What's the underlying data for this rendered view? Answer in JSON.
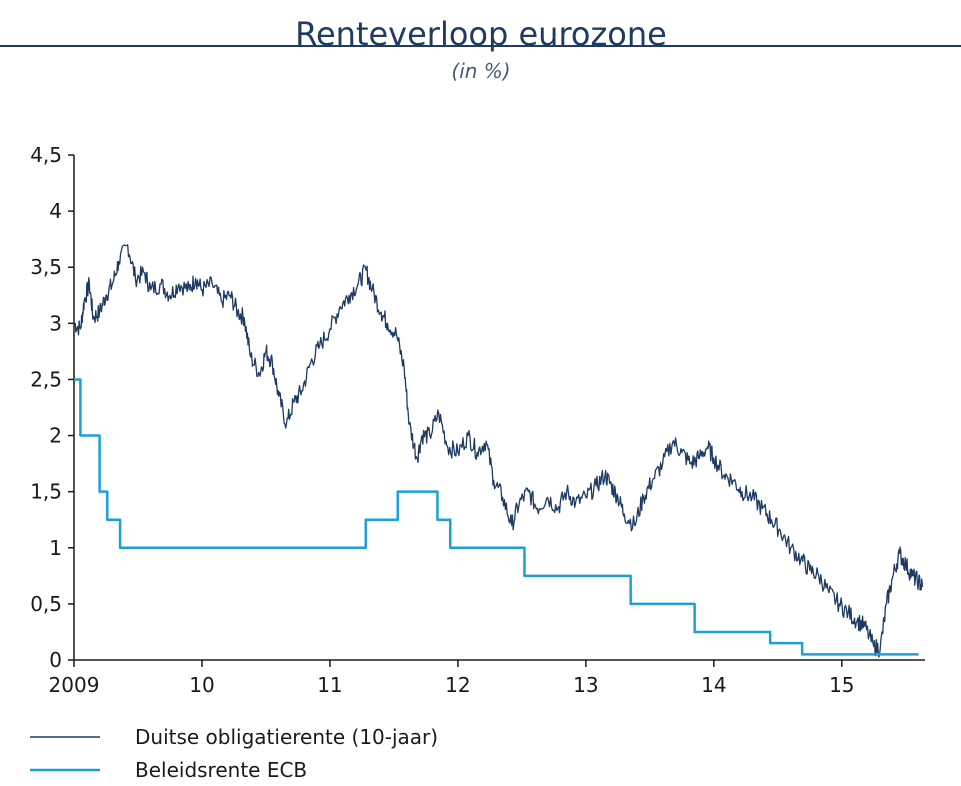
{
  "chart_data": {
    "type": "line",
    "title": "Renteverloop eurozone",
    "subtitle": "(in %)",
    "xlabel": "",
    "ylabel": "",
    "xlim": [
      2009.0,
      2015.65
    ],
    "ylim": [
      0,
      4.5
    ],
    "x_ticks": [
      {
        "value": 2009,
        "label": "2009"
      },
      {
        "value": 2010,
        "label": "10"
      },
      {
        "value": 2011,
        "label": "11"
      },
      {
        "value": 2012,
        "label": "12"
      },
      {
        "value": 2013,
        "label": "13"
      },
      {
        "value": 2014,
        "label": "14"
      },
      {
        "value": 2015,
        "label": "15"
      }
    ],
    "y_ticks": [
      {
        "value": 0,
        "label": "0"
      },
      {
        "value": 0.5,
        "label": "0,5"
      },
      {
        "value": 1,
        "label": "1"
      },
      {
        "value": 1.5,
        "label": "1,5"
      },
      {
        "value": 2,
        "label": "2"
      },
      {
        "value": 2.5,
        "label": "2,5"
      },
      {
        "value": 3,
        "label": "3"
      },
      {
        "value": 3.5,
        "label": "3,5"
      },
      {
        "value": 4,
        "label": "4"
      },
      {
        "value": 4.5,
        "label": "4,5"
      }
    ],
    "grid": false,
    "legend_position": "bottom-left",
    "series": [
      {
        "name": "Duitse obligatierente (10-jaar)",
        "color": "#1f3a63",
        "step": false,
        "points": [
          [
            2009.0,
            3.0
          ],
          [
            2009.05,
            2.95
          ],
          [
            2009.08,
            3.2
          ],
          [
            2009.12,
            3.35
          ],
          [
            2009.15,
            3.05
          ],
          [
            2009.2,
            3.1
          ],
          [
            2009.25,
            3.25
          ],
          [
            2009.3,
            3.35
          ],
          [
            2009.35,
            3.55
          ],
          [
            2009.42,
            3.7
          ],
          [
            2009.48,
            3.4
          ],
          [
            2009.55,
            3.45
          ],
          [
            2009.6,
            3.3
          ],
          [
            2009.68,
            3.35
          ],
          [
            2009.75,
            3.25
          ],
          [
            2009.82,
            3.35
          ],
          [
            2009.9,
            3.3
          ],
          [
            2009.95,
            3.4
          ],
          [
            2010.0,
            3.3
          ],
          [
            2010.08,
            3.35
          ],
          [
            2010.15,
            3.2
          ],
          [
            2010.22,
            3.25
          ],
          [
            2010.28,
            3.1
          ],
          [
            2010.33,
            3.05
          ],
          [
            2010.38,
            2.7
          ],
          [
            2010.45,
            2.55
          ],
          [
            2010.5,
            2.75
          ],
          [
            2010.55,
            2.65
          ],
          [
            2010.6,
            2.35
          ],
          [
            2010.66,
            2.1
          ],
          [
            2010.72,
            2.3
          ],
          [
            2010.78,
            2.4
          ],
          [
            2010.85,
            2.65
          ],
          [
            2010.92,
            2.8
          ],
          [
            2011.0,
            2.95
          ],
          [
            2011.08,
            3.15
          ],
          [
            2011.15,
            3.25
          ],
          [
            2011.22,
            3.35
          ],
          [
            2011.28,
            3.48
          ],
          [
            2011.33,
            3.3
          ],
          [
            2011.4,
            3.1
          ],
          [
            2011.45,
            3.0
          ],
          [
            2011.52,
            2.9
          ],
          [
            2011.58,
            2.6
          ],
          [
            2011.62,
            2.1
          ],
          [
            2011.68,
            1.8
          ],
          [
            2011.72,
            2.0
          ],
          [
            2011.78,
            2.0
          ],
          [
            2011.85,
            2.2
          ],
          [
            2011.92,
            1.9
          ],
          [
            2012.0,
            1.85
          ],
          [
            2012.08,
            2.0
          ],
          [
            2012.15,
            1.85
          ],
          [
            2012.22,
            1.95
          ],
          [
            2012.28,
            1.6
          ],
          [
            2012.35,
            1.45
          ],
          [
            2012.42,
            1.2
          ],
          [
            2012.48,
            1.4
          ],
          [
            2012.55,
            1.5
          ],
          [
            2012.62,
            1.35
          ],
          [
            2012.7,
            1.45
          ],
          [
            2012.78,
            1.35
          ],
          [
            2012.85,
            1.5
          ],
          [
            2012.92,
            1.4
          ],
          [
            2013.0,
            1.45
          ],
          [
            2013.08,
            1.55
          ],
          [
            2013.15,
            1.65
          ],
          [
            2013.2,
            1.55
          ],
          [
            2013.25,
            1.45
          ],
          [
            2013.3,
            1.3
          ],
          [
            2013.38,
            1.2
          ],
          [
            2013.45,
            1.45
          ],
          [
            2013.52,
            1.6
          ],
          [
            2013.6,
            1.75
          ],
          [
            2013.68,
            1.95
          ],
          [
            2013.75,
            1.85
          ],
          [
            2013.82,
            1.75
          ],
          [
            2013.88,
            1.8
          ],
          [
            2013.95,
            1.9
          ],
          [
            2014.0,
            1.8
          ],
          [
            2014.08,
            1.65
          ],
          [
            2014.15,
            1.6
          ],
          [
            2014.22,
            1.5
          ],
          [
            2014.3,
            1.45
          ],
          [
            2014.38,
            1.35
          ],
          [
            2014.45,
            1.25
          ],
          [
            2014.52,
            1.15
          ],
          [
            2014.6,
            1.0
          ],
          [
            2014.68,
            0.9
          ],
          [
            2014.75,
            0.8
          ],
          [
            2014.82,
            0.75
          ],
          [
            2014.9,
            0.6
          ],
          [
            2014.98,
            0.5
          ],
          [
            2015.05,
            0.42
          ],
          [
            2015.12,
            0.35
          ],
          [
            2015.18,
            0.3
          ],
          [
            2015.25,
            0.12
          ],
          [
            2015.3,
            0.1
          ],
          [
            2015.35,
            0.5
          ],
          [
            2015.4,
            0.75
          ],
          [
            2015.45,
            0.95
          ],
          [
            2015.5,
            0.85
          ],
          [
            2015.55,
            0.75
          ],
          [
            2015.6,
            0.7
          ],
          [
            2015.63,
            0.65
          ]
        ]
      },
      {
        "name": "Beleidsrente ECB",
        "color": "#1e9fd8",
        "step": true,
        "points": [
          [
            2009.0,
            2.5
          ],
          [
            2009.05,
            2.0
          ],
          [
            2009.2,
            1.5
          ],
          [
            2009.26,
            1.25
          ],
          [
            2009.36,
            1.0
          ],
          [
            2011.28,
            1.25
          ],
          [
            2011.53,
            1.5
          ],
          [
            2011.84,
            1.25
          ],
          [
            2011.94,
            1.0
          ],
          [
            2012.52,
            0.75
          ],
          [
            2013.35,
            0.5
          ],
          [
            2013.85,
            0.25
          ],
          [
            2014.44,
            0.15
          ],
          [
            2014.69,
            0.05
          ],
          [
            2015.6,
            0.05
          ]
        ]
      }
    ]
  }
}
